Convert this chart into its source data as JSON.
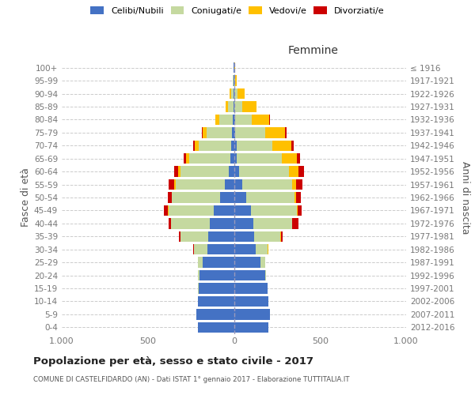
{
  "age_groups": [
    "0-4",
    "5-9",
    "10-14",
    "15-19",
    "20-24",
    "25-29",
    "30-34",
    "35-39",
    "40-44",
    "45-49",
    "50-54",
    "55-59",
    "60-64",
    "65-69",
    "70-74",
    "75-79",
    "80-84",
    "85-89",
    "90-94",
    "95-99",
    "100+"
  ],
  "birth_years": [
    "2012-2016",
    "2007-2011",
    "2002-2006",
    "1997-2001",
    "1992-1996",
    "1987-1991",
    "1982-1986",
    "1977-1981",
    "1972-1976",
    "1967-1971",
    "1962-1966",
    "1957-1961",
    "1952-1956",
    "1947-1951",
    "1942-1946",
    "1937-1941",
    "1932-1936",
    "1927-1931",
    "1922-1926",
    "1917-1921",
    "≤ 1916"
  ],
  "males_celibi": [
    210,
    220,
    210,
    205,
    200,
    180,
    155,
    148,
    140,
    115,
    82,
    52,
    32,
    22,
    18,
    10,
    6,
    4,
    2,
    2,
    2
  ],
  "males_coniugati": [
    0,
    0,
    1,
    3,
    10,
    28,
    78,
    162,
    225,
    265,
    278,
    288,
    278,
    238,
    188,
    148,
    80,
    30,
    12,
    3,
    1
  ],
  "males_vedovi": [
    0,
    0,
    0,
    0,
    0,
    0,
    0,
    1,
    1,
    2,
    3,
    5,
    12,
    18,
    20,
    22,
    20,
    15,
    10,
    3,
    1
  ],
  "males_divorziati": [
    0,
    0,
    0,
    1,
    1,
    2,
    5,
    10,
    15,
    25,
    20,
    35,
    25,
    12,
    10,
    5,
    3,
    1,
    0,
    0,
    0
  ],
  "females_nubili": [
    200,
    210,
    200,
    195,
    180,
    155,
    125,
    115,
    112,
    100,
    72,
    48,
    28,
    18,
    14,
    8,
    6,
    4,
    2,
    2,
    2
  ],
  "females_coniugate": [
    0,
    0,
    0,
    2,
    8,
    25,
    72,
    155,
    225,
    265,
    278,
    290,
    292,
    258,
    210,
    175,
    98,
    45,
    18,
    3,
    1
  ],
  "females_vedove": [
    0,
    0,
    0,
    0,
    0,
    0,
    1,
    2,
    3,
    5,
    12,
    25,
    55,
    90,
    110,
    115,
    100,
    80,
    40,
    10,
    3
  ],
  "females_divorziate": [
    0,
    0,
    0,
    0,
    0,
    1,
    3,
    10,
    35,
    25,
    25,
    35,
    30,
    20,
    12,
    6,
    4,
    2,
    1,
    0,
    0
  ],
  "color_celibi": "#4472c4",
  "color_coniugati": "#c5d9a0",
  "color_vedovi": "#ffc000",
  "color_divorziati": "#cc0000",
  "xlim": 1000,
  "xtick_vals": [
    -1000,
    -500,
    0,
    500,
    1000
  ],
  "xtick_labels": [
    "1.000",
    "500",
    "0",
    "500",
    "1.000"
  ],
  "title": "Popolazione per età, sesso e stato civile - 2017",
  "subtitle": "COMUNE DI CASTELFIDARDO (AN) - Dati ISTAT 1° gennaio 2017 - Elaborazione TUTTITALIA.IT",
  "ylabel_left": "Fasce di età",
  "ylabel_right": "Anni di nascita",
  "label_femmine": "Femmine",
  "legend_labels": [
    "Celibi/Nubili",
    "Coniugati/e",
    "Vedovi/e",
    "Divorziati/e"
  ],
  "bg_color": "#ffffff",
  "grid_color": "#cccccc",
  "tick_color": "#777777",
  "label_color": "#555555"
}
